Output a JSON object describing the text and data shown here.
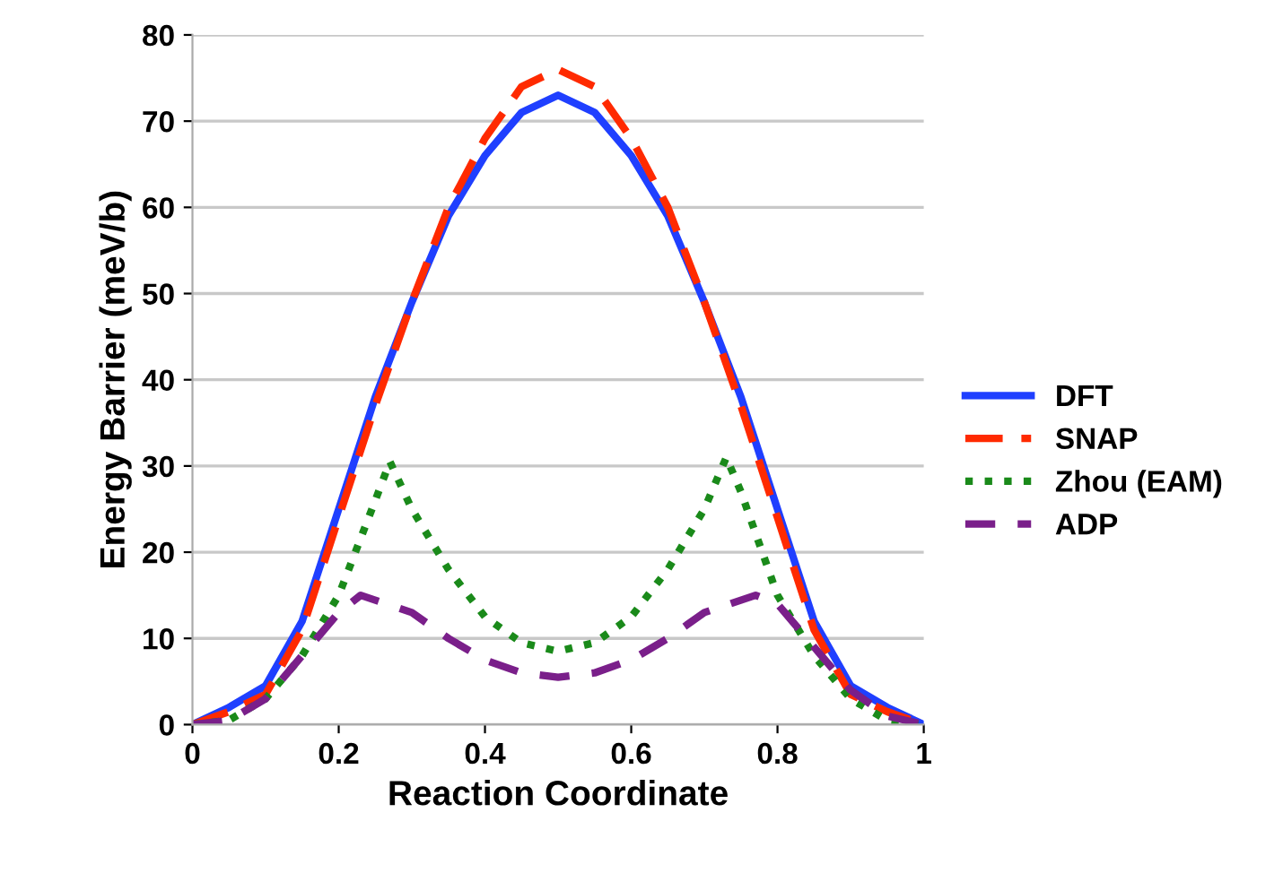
{
  "chart_data": {
    "type": "line",
    "xlabel": "Reaction Coordinate",
    "ylabel": "Energy Barrier (meV/b)",
    "xlim": [
      0,
      1
    ],
    "ylim": [
      0,
      80
    ],
    "xticks": [
      0,
      {
        "value": 0.2,
        "label": "0.2"
      },
      {
        "value": 0.4,
        "label": "0.4"
      },
      {
        "value": 0.6,
        "label": "0.6"
      },
      {
        "value": 0.8,
        "label": "0.8"
      },
      1
    ],
    "yticks": [
      0,
      10,
      20,
      30,
      40,
      50,
      60,
      70,
      80
    ],
    "grid": "y",
    "legend": "right",
    "marker": "none",
    "series": [
      {
        "name": "DFT",
        "color": "#1f3fff",
        "line_style": "solid",
        "x": [
          0,
          0.05,
          0.1,
          0.15,
          0.2,
          0.25,
          0.3,
          0.35,
          0.4,
          0.45,
          0.5,
          0.55,
          0.6,
          0.65,
          0.7,
          0.75,
          0.8,
          0.85,
          0.9,
          0.95,
          1
        ],
        "values": [
          0,
          2,
          4.5,
          12,
          25,
          38,
          49,
          59,
          66,
          71,
          73,
          71,
          66,
          59,
          49,
          38,
          25,
          12,
          4.5,
          2,
          0
        ]
      },
      {
        "name": "SNAP",
        "color": "#ff2a00",
        "line_style": "dashed",
        "x": [
          0,
          0.05,
          0.1,
          0.15,
          0.2,
          0.25,
          0.3,
          0.35,
          0.4,
          0.45,
          0.5,
          0.55,
          0.6,
          0.65,
          0.7,
          0.75,
          0.8,
          0.85,
          0.9,
          0.95,
          1
        ],
        "values": [
          0,
          1.5,
          3.5,
          11,
          24,
          37,
          49,
          60,
          68,
          74,
          76,
          74,
          68,
          60,
          49,
          37,
          24,
          11,
          3.5,
          1.5,
          0
        ]
      },
      {
        "name": "Zhou (EAM)",
        "color": "#1a8a1a",
        "line_style": "dotted",
        "x": [
          0,
          0.05,
          0.1,
          0.15,
          0.2,
          0.25,
          0.27,
          0.3,
          0.35,
          0.4,
          0.45,
          0.5,
          0.55,
          0.6,
          0.65,
          0.7,
          0.73,
          0.75,
          0.8,
          0.85,
          0.9,
          0.95,
          1
        ],
        "values": [
          0,
          0.5,
          3,
          8,
          15,
          26,
          30.5,
          25,
          18,
          12.5,
          9.5,
          8.5,
          9.5,
          12.5,
          18,
          25,
          31,
          27,
          15,
          8,
          3,
          0.5,
          0
        ]
      },
      {
        "name": "ADP",
        "color": "#7a1f8a",
        "line_style": "dashed",
        "x": [
          0,
          0.05,
          0.1,
          0.15,
          0.2,
          0.23,
          0.3,
          0.35,
          0.4,
          0.45,
          0.5,
          0.55,
          0.6,
          0.65,
          0.7,
          0.77,
          0.8,
          0.85,
          0.9,
          0.95,
          1
        ],
        "values": [
          0,
          0.5,
          3,
          8,
          13,
          15,
          13,
          10,
          7.5,
          6,
          5.5,
          6,
          7.5,
          10,
          13,
          15,
          14,
          9,
          4,
          1,
          0
        ]
      }
    ]
  }
}
